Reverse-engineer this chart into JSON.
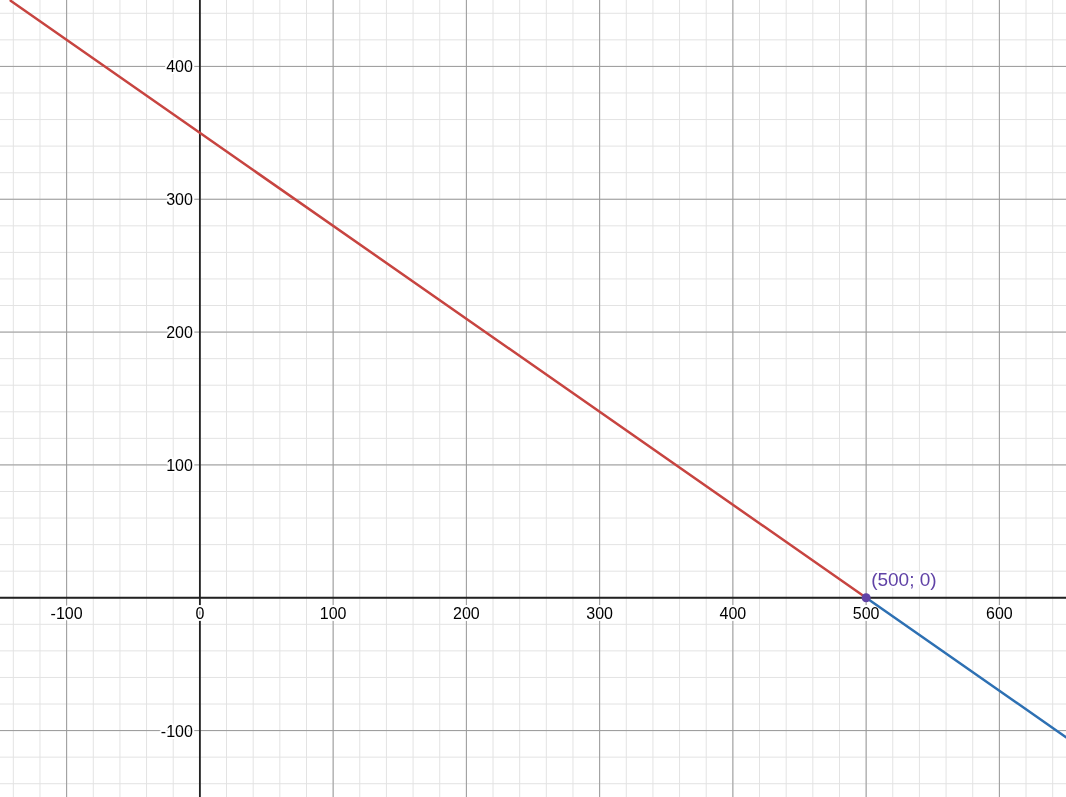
{
  "chart_data": {
    "type": "line",
    "xlim": [
      -150,
      650
    ],
    "ylim": [
      -150,
      450
    ],
    "xticks": [
      -100,
      0,
      100,
      200,
      300,
      400,
      500,
      600
    ],
    "yticks": [
      -100,
      100,
      200,
      300,
      400
    ],
    "grid": true,
    "line_style": "solid",
    "series": [
      {
        "color": "#c74440",
        "x": [
          -142,
          500
        ],
        "values": [
          449.4,
          0
        ]
      },
      {
        "color": "#2d70b3",
        "x": [
          500,
          650
        ],
        "values": [
          0,
          -105
        ]
      },
      {
        "type": "scatter",
        "color": "#6042a6",
        "x": [
          500
        ],
        "values": [
          0
        ],
        "marker": "circle"
      }
    ],
    "annotations": [
      {
        "text": "(500; 0)",
        "x": 500,
        "y": 0
      }
    ]
  }
}
